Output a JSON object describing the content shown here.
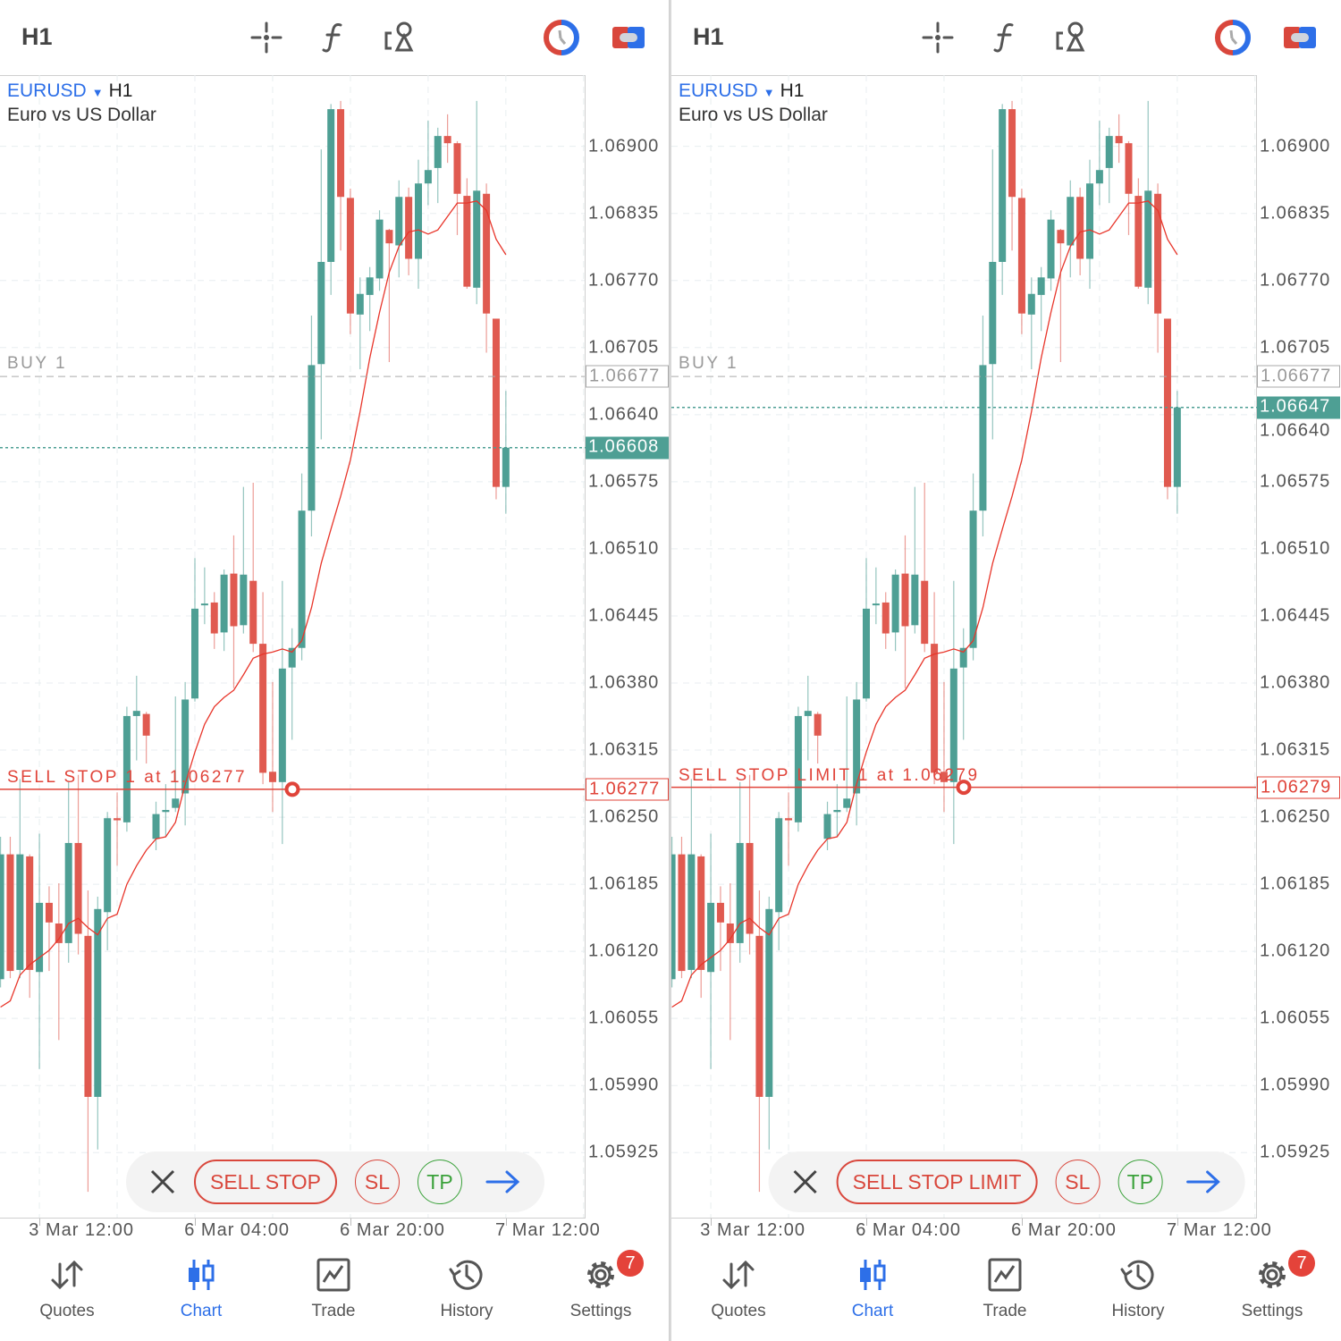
{
  "panels": [
    {
      "toolbar": {
        "timeframe": "H1",
        "icons": [
          "crosshair-icon",
          "function-icon",
          "objects-icon",
          "one-click-trading-icon",
          "trade-mode-icon"
        ]
      },
      "symbol": "EURUSD",
      "symbol_timeframe": "H1",
      "description": "Euro vs US Dollar",
      "buy_line": {
        "label": "BUY 1",
        "price": "1.06677"
      },
      "current_price": "1.06608",
      "pending": {
        "label": "SELL STOP 1 at 1.06277",
        "price": "1.06277"
      },
      "order_bar": {
        "type": "SELL STOP",
        "sl": "SL",
        "tp": "TP"
      },
      "nav": [
        {
          "label": "Quotes"
        },
        {
          "label": "Chart",
          "active": true
        },
        {
          "label": "Trade"
        },
        {
          "label": "History"
        },
        {
          "label": "Settings",
          "badge": "7"
        }
      ]
    },
    {
      "toolbar": {
        "timeframe": "H1",
        "icons": [
          "crosshair-icon",
          "function-icon",
          "objects-icon",
          "one-click-trading-icon",
          "trade-mode-icon"
        ]
      },
      "symbol": "EURUSD",
      "symbol_timeframe": "H1",
      "description": "Euro vs US Dollar",
      "buy_line": {
        "label": "BUY 1",
        "price": "1.06677"
      },
      "current_price": "1.06647",
      "pending": {
        "label": "SELL STOP LIMIT 1 at 1.06279",
        "price": "1.06279"
      },
      "order_bar": {
        "type": "SELL STOP LIMIT",
        "sl": "SL",
        "tp": "TP"
      },
      "nav": [
        {
          "label": "Quotes"
        },
        {
          "label": "Chart",
          "active": true
        },
        {
          "label": "Trade"
        },
        {
          "label": "History"
        },
        {
          "label": "Settings",
          "badge": "7"
        }
      ]
    }
  ],
  "colors": {
    "bull": "#4e9f94",
    "bear": "#e05a50",
    "ma": "#e8352a",
    "accent": "#2d6fe8",
    "pending": "#e0443a",
    "buy_line": "#aaaaaa"
  },
  "chart_data": [
    {
      "type": "candlestick",
      "symbol": "EURUSD",
      "timeframe": "H1",
      "ylim": [
        1.05862,
        1.06969
      ],
      "grid": true,
      "yticks": [
        "1.06900",
        "1.06835",
        "1.06770",
        "1.06705",
        "1.06640",
        "1.06575",
        "1.06510",
        "1.06445",
        "1.06380",
        "1.06315",
        "1.06250",
        "1.06185",
        "1.06120",
        "1.06055",
        "1.05990",
        "1.05925"
      ],
      "xticks": [
        {
          "label": "3 Mar 12:00",
          "bar": 4
        },
        {
          "label": "6 Mar 04:00",
          "bar": 20
        },
        {
          "label": "6 Mar 20:00",
          "bar": 36
        },
        {
          "label": "7 Mar 12:00",
          "bar": 52
        }
      ],
      "candles_ohlc": [
        [
          1.06093,
          1.06231,
          1.06085,
          1.06214
        ],
        [
          1.06214,
          1.06231,
          1.06094,
          1.06101
        ],
        [
          1.06102,
          1.06287,
          1.06094,
          1.06214
        ],
        [
          1.06212,
          1.06214,
          1.06075,
          1.06102
        ],
        [
          1.061,
          1.06234,
          1.06006,
          1.06167
        ],
        [
          1.06167,
          1.06183,
          1.06101,
          1.06148
        ],
        [
          1.06147,
          1.06186,
          1.06034,
          1.06128
        ],
        [
          1.06128,
          1.06284,
          1.06109,
          1.06225
        ],
        [
          1.06225,
          1.06291,
          1.06117,
          1.06137
        ],
        [
          1.06135,
          1.06179,
          1.05887,
          1.05979
        ],
        [
          1.05979,
          1.06173,
          1.05928,
          1.06161
        ],
        [
          1.06158,
          1.06255,
          1.06121,
          1.06249
        ],
        [
          1.06249,
          1.06274,
          1.06203,
          1.06247
        ],
        [
          1.06245,
          1.06357,
          1.06236,
          1.06348
        ],
        [
          1.06348,
          1.06387,
          1.06305,
          1.06353
        ],
        [
          1.0635,
          1.06352,
          1.06302,
          1.06329
        ],
        [
          1.06229,
          1.06265,
          1.06218,
          1.06253
        ],
        [
          1.06255,
          1.06282,
          1.06231,
          1.06257
        ],
        [
          1.06259,
          1.06367,
          1.06255,
          1.06268
        ],
        [
          1.06273,
          1.06381,
          1.06242,
          1.06364
        ],
        [
          1.06365,
          1.06501,
          1.06362,
          1.06452
        ],
        [
          1.06456,
          1.06492,
          1.06437,
          1.06457
        ],
        [
          1.06458,
          1.06468,
          1.06413,
          1.06428
        ],
        [
          1.06429,
          1.0649,
          1.06411,
          1.06485
        ],
        [
          1.06486,
          1.06523,
          1.06375,
          1.06435
        ],
        [
          1.06436,
          1.0657,
          1.06428,
          1.06485
        ],
        [
          1.06479,
          1.06574,
          1.0641,
          1.06418
        ],
        [
          1.06418,
          1.06468,
          1.06282,
          1.06293
        ],
        [
          1.06294,
          1.06381,
          1.06255,
          1.06284
        ],
        [
          1.06284,
          1.06479,
          1.06224,
          1.06394
        ],
        [
          1.06395,
          1.06433,
          1.06325,
          1.06414
        ],
        [
          1.06414,
          1.06583,
          1.06402,
          1.06547
        ],
        [
          1.06547,
          1.06736,
          1.06522,
          1.06688
        ],
        [
          1.06689,
          1.06897,
          1.06616,
          1.06788
        ],
        [
          1.06788,
          1.06941,
          1.06756,
          1.06936
        ],
        [
          1.06936,
          1.06944,
          1.06799,
          1.06851
        ],
        [
          1.0685,
          1.06859,
          1.06718,
          1.06738
        ],
        [
          1.06737,
          1.06773,
          1.06684,
          1.06757
        ],
        [
          1.06756,
          1.06783,
          1.06721,
          1.06773
        ],
        [
          1.06772,
          1.06838,
          1.0676,
          1.06829
        ],
        [
          1.06819,
          1.0682,
          1.06691,
          1.06806
        ],
        [
          1.06804,
          1.06867,
          1.06773,
          1.06851
        ],
        [
          1.06851,
          1.0686,
          1.06775,
          1.06791
        ],
        [
          1.06791,
          1.06887,
          1.06762,
          1.06864
        ],
        [
          1.06864,
          1.06925,
          1.06843,
          1.06877
        ],
        [
          1.06879,
          1.06918,
          1.06845,
          1.0691
        ],
        [
          1.0691,
          1.06931,
          1.06884,
          1.06903
        ],
        [
          1.06903,
          1.06905,
          1.06814,
          1.06854
        ],
        [
          1.06852,
          1.06869,
          1.06762,
          1.06764
        ],
        [
          1.06763,
          1.06944,
          1.06747,
          1.06857
        ],
        [
          1.06854,
          1.06864,
          1.067,
          1.06738
        ],
        [
          1.06733,
          1.06733,
          1.06558,
          1.0657
        ],
        [
          1.0657,
          1.06663,
          1.06544,
          1.06608
        ]
      ],
      "ma": [
        1.06066,
        1.06072,
        1.06097,
        1.06107,
        1.06114,
        1.06121,
        1.06132,
        1.06147,
        1.06152,
        1.06143,
        1.06136,
        1.06152,
        1.06156,
        1.06185,
        1.06203,
        1.06218,
        1.06229,
        1.06231,
        1.06245,
        1.06282,
        1.06313,
        1.0634,
        1.06357,
        1.06366,
        1.06373,
        1.06388,
        1.06404,
        1.06408,
        1.0641,
        1.06413,
        1.0641,
        1.06421,
        1.06453,
        1.06496,
        1.06529,
        1.06561,
        1.06596,
        1.06643,
        1.06695,
        1.06739,
        1.06778,
        1.06803,
        1.06817,
        1.06819,
        1.06815,
        1.06819,
        1.06832,
        1.06845,
        1.06845,
        1.06847,
        1.06838,
        1.0681,
        1.06795
      ],
      "levels": {
        "buy": 1.06677,
        "current": 1.06608,
        "pending": 1.06277
      }
    },
    {
      "type": "candlestick",
      "symbol": "EURUSD",
      "timeframe": "H1",
      "ylim": [
        1.05862,
        1.06969
      ],
      "grid": true,
      "yticks": [
        "1.06900",
        "1.06835",
        "1.06770",
        "1.06705",
        "1.06640",
        "1.06575",
        "1.06510",
        "1.06445",
        "1.06380",
        "1.06315",
        "1.06250",
        "1.06185",
        "1.06120",
        "1.06055",
        "1.05990",
        "1.05925"
      ],
      "xticks": [
        {
          "label": "3 Mar 12:00",
          "bar": 4
        },
        {
          "label": "6 Mar 04:00",
          "bar": 20
        },
        {
          "label": "6 Mar 20:00",
          "bar": 36
        },
        {
          "label": "7 Mar 12:00",
          "bar": 52
        }
      ],
      "candles_ohlc": [
        [
          1.06093,
          1.06231,
          1.06085,
          1.06214
        ],
        [
          1.06214,
          1.06231,
          1.06094,
          1.06101
        ],
        [
          1.06102,
          1.06287,
          1.06094,
          1.06214
        ],
        [
          1.06212,
          1.06214,
          1.06075,
          1.06102
        ],
        [
          1.061,
          1.06234,
          1.06006,
          1.06167
        ],
        [
          1.06167,
          1.06183,
          1.06101,
          1.06148
        ],
        [
          1.06147,
          1.06186,
          1.06034,
          1.06128
        ],
        [
          1.06128,
          1.06284,
          1.06109,
          1.06225
        ],
        [
          1.06225,
          1.06291,
          1.06117,
          1.06137
        ],
        [
          1.06135,
          1.06179,
          1.05887,
          1.05979
        ],
        [
          1.05979,
          1.06173,
          1.05928,
          1.06161
        ],
        [
          1.06158,
          1.06255,
          1.06121,
          1.06249
        ],
        [
          1.06249,
          1.06274,
          1.06203,
          1.06247
        ],
        [
          1.06245,
          1.06357,
          1.06236,
          1.06348
        ],
        [
          1.06348,
          1.06387,
          1.06305,
          1.06353
        ],
        [
          1.0635,
          1.06352,
          1.06302,
          1.06329
        ],
        [
          1.06229,
          1.06265,
          1.06218,
          1.06253
        ],
        [
          1.06255,
          1.06282,
          1.06231,
          1.06257
        ],
        [
          1.06259,
          1.06367,
          1.06255,
          1.06268
        ],
        [
          1.06273,
          1.06381,
          1.06242,
          1.06364
        ],
        [
          1.06365,
          1.06501,
          1.06362,
          1.06452
        ],
        [
          1.06456,
          1.06492,
          1.06437,
          1.06457
        ],
        [
          1.06458,
          1.06468,
          1.06413,
          1.06428
        ],
        [
          1.06429,
          1.0649,
          1.06411,
          1.06485
        ],
        [
          1.06486,
          1.06523,
          1.06375,
          1.06435
        ],
        [
          1.06436,
          1.0657,
          1.06428,
          1.06485
        ],
        [
          1.06479,
          1.06574,
          1.0641,
          1.06418
        ],
        [
          1.06418,
          1.06468,
          1.06282,
          1.06293
        ],
        [
          1.06294,
          1.06381,
          1.06255,
          1.06284
        ],
        [
          1.06284,
          1.06479,
          1.06224,
          1.06394
        ],
        [
          1.06395,
          1.06433,
          1.06325,
          1.06414
        ],
        [
          1.06414,
          1.06583,
          1.06402,
          1.06547
        ],
        [
          1.06547,
          1.06736,
          1.06522,
          1.06688
        ],
        [
          1.06689,
          1.06897,
          1.06616,
          1.06788
        ],
        [
          1.06788,
          1.06941,
          1.06756,
          1.06936
        ],
        [
          1.06936,
          1.06944,
          1.06799,
          1.06851
        ],
        [
          1.0685,
          1.06859,
          1.06718,
          1.06738
        ],
        [
          1.06737,
          1.06773,
          1.06684,
          1.06757
        ],
        [
          1.06756,
          1.06783,
          1.06721,
          1.06773
        ],
        [
          1.06772,
          1.06838,
          1.0676,
          1.06829
        ],
        [
          1.06819,
          1.0682,
          1.06691,
          1.06806
        ],
        [
          1.06804,
          1.06867,
          1.06773,
          1.06851
        ],
        [
          1.06851,
          1.0686,
          1.06775,
          1.06791
        ],
        [
          1.06791,
          1.06887,
          1.06762,
          1.06864
        ],
        [
          1.06864,
          1.06925,
          1.06843,
          1.06877
        ],
        [
          1.06879,
          1.06918,
          1.06845,
          1.0691
        ],
        [
          1.0691,
          1.06931,
          1.06884,
          1.06903
        ],
        [
          1.06903,
          1.06905,
          1.06814,
          1.06854
        ],
        [
          1.06852,
          1.06869,
          1.06762,
          1.06764
        ],
        [
          1.06763,
          1.06944,
          1.06747,
          1.06857
        ],
        [
          1.06854,
          1.06864,
          1.067,
          1.06738
        ],
        [
          1.06733,
          1.06733,
          1.06558,
          1.0657
        ],
        [
          1.0657,
          1.06663,
          1.06544,
          1.06647
        ]
      ],
      "ma": [
        1.06066,
        1.06072,
        1.06097,
        1.06107,
        1.06114,
        1.06121,
        1.06132,
        1.06147,
        1.06152,
        1.06143,
        1.06136,
        1.06152,
        1.06156,
        1.06185,
        1.06203,
        1.06218,
        1.06229,
        1.06231,
        1.06245,
        1.06282,
        1.06313,
        1.0634,
        1.06357,
        1.06366,
        1.06373,
        1.06388,
        1.06404,
        1.06408,
        1.0641,
        1.06413,
        1.0641,
        1.06421,
        1.06453,
        1.06496,
        1.06529,
        1.06561,
        1.06596,
        1.06643,
        1.06695,
        1.06739,
        1.06778,
        1.06803,
        1.06817,
        1.06819,
        1.06815,
        1.06819,
        1.06832,
        1.06845,
        1.06845,
        1.06847,
        1.06838,
        1.0681,
        1.06795
      ],
      "levels": {
        "buy": 1.06677,
        "current": 1.06647,
        "pending": 1.06279
      }
    }
  ]
}
